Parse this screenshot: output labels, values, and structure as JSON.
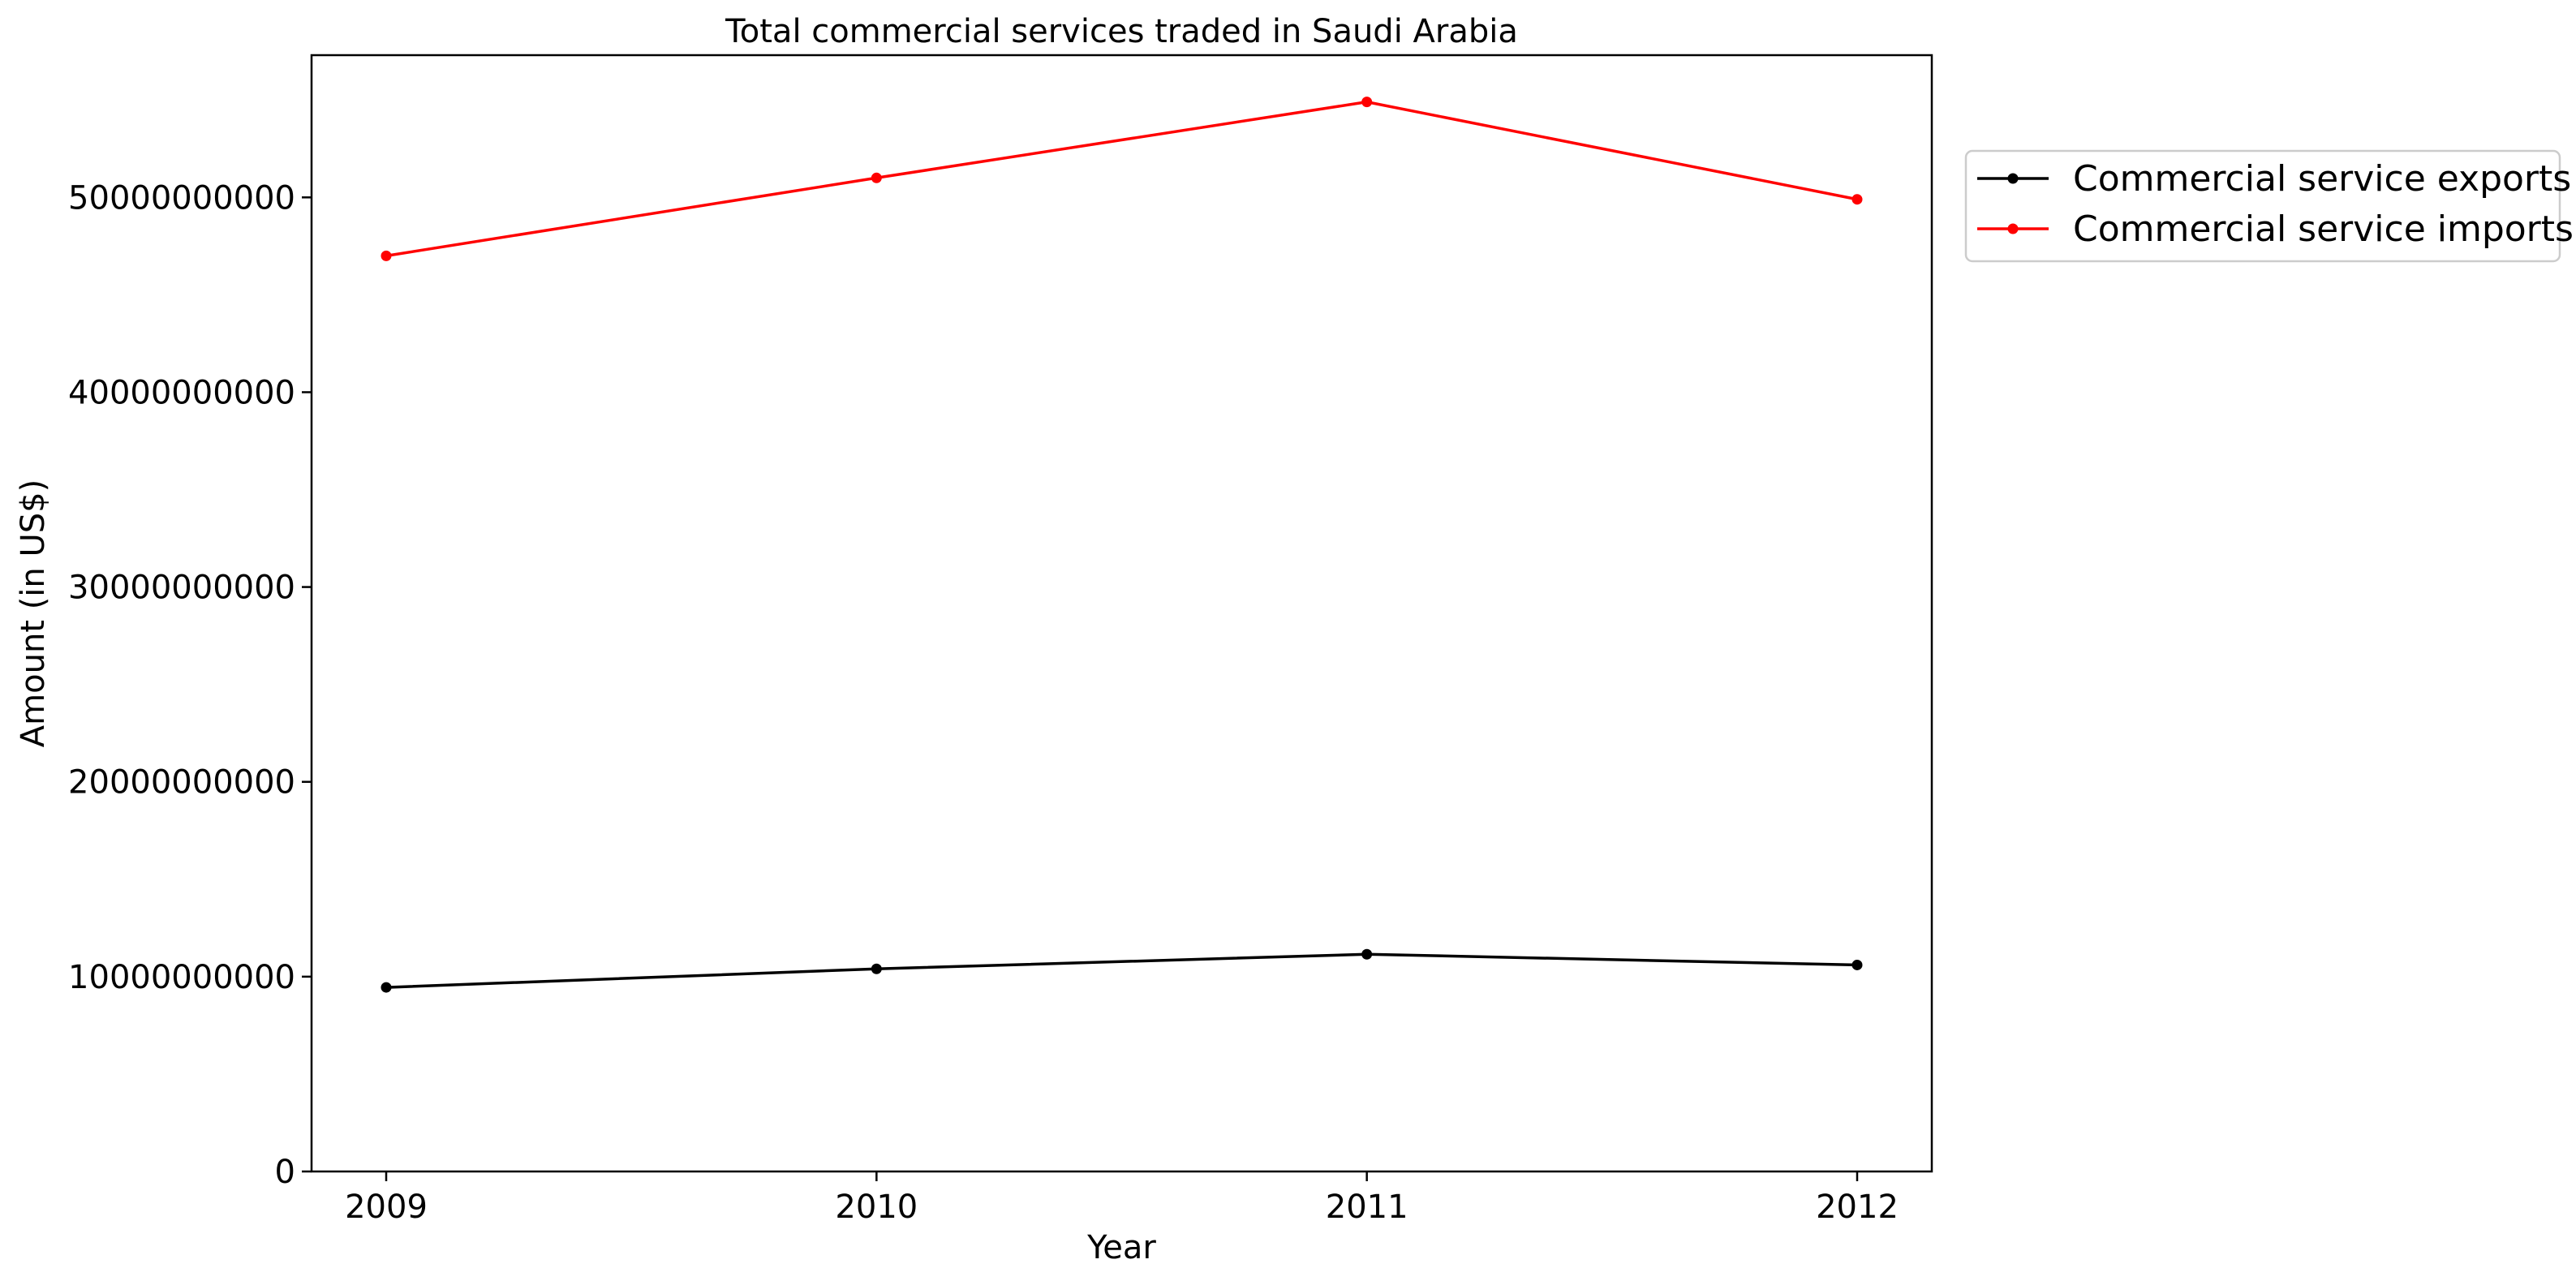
{
  "chart_data": {
    "type": "line",
    "title": "Total commercial services traded in Saudi Arabia",
    "xlabel": "Year",
    "ylabel": "Amount (in US$)",
    "x": [
      "2009",
      "2010",
      "2011",
      "2012"
    ],
    "ylim": [
      0,
      57300000000
    ],
    "yticks": [
      0,
      10000000000,
      20000000000,
      30000000000,
      40000000000,
      50000000000
    ],
    "ytick_labels": [
      "0",
      "10000000000",
      "20000000000",
      "30000000000",
      "40000000000",
      "50000000000"
    ],
    "grid": false,
    "legend_position": "outside-top-right",
    "series": [
      {
        "name": "Commercial service exports",
        "color": "#000000",
        "marker": "dot",
        "values": [
          9450000000,
          10400000000,
          11150000000,
          10600000000
        ]
      },
      {
        "name": "Commercial service imports",
        "color": "#ff0000",
        "marker": "dot",
        "values": [
          47000000000,
          51000000000,
          54900000000,
          49900000000
        ]
      }
    ]
  }
}
